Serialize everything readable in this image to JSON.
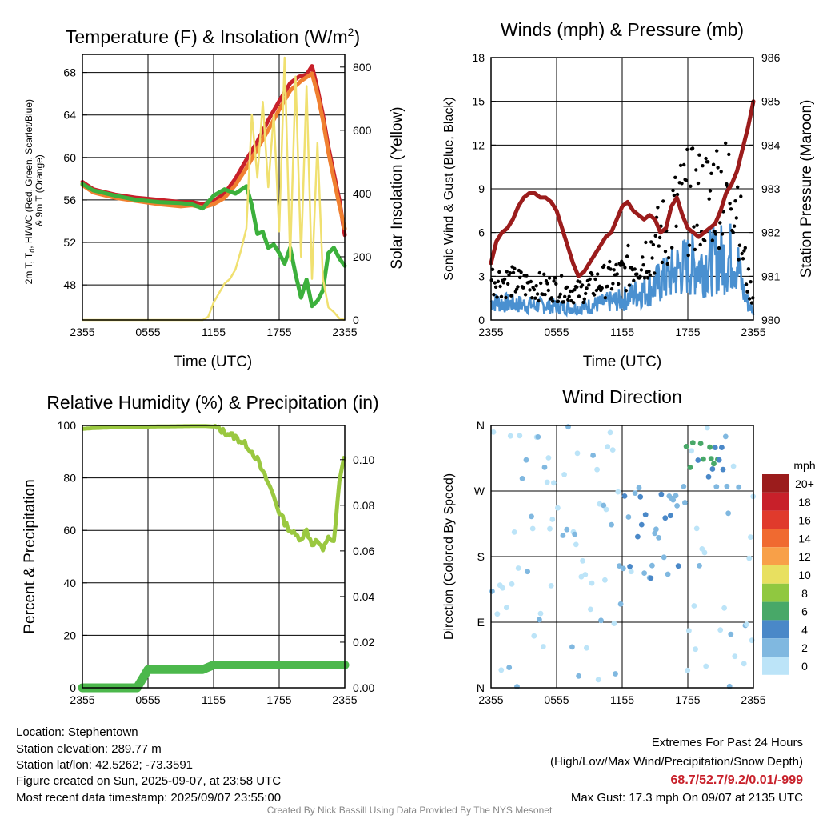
{
  "chart_data": [
    {
      "type": "line",
      "title": "Temperature (F) & Insolation (W/m²)",
      "xlabel": "Time (UTC)",
      "ylabel": "2m T, Td, HI/WC (Red, Green, Scarlet/Blue) & 9m T (Orange)",
      "y2label": "Solar Insolation (Yellow)",
      "x_ticks": [
        "2355",
        "0555",
        "1155",
        "1755",
        "2355"
      ],
      "y_ticks": [
        48,
        52,
        56,
        60,
        64,
        68
      ],
      "y2_ticks": [
        0,
        200,
        400,
        600,
        800
      ],
      "ylim": [
        44.7,
        69.7
      ],
      "y2lim": [
        0,
        840
      ],
      "grid": true,
      "series": [
        {
          "color": "#c8202a",
          "axis": "left",
          "points": [
            [
              0,
              57.7
            ],
            [
              1,
              57.0
            ],
            [
              3,
              56.5
            ],
            [
              5,
              56.2
            ],
            [
              7,
              56.0
            ],
            [
              9,
              55.8
            ],
            [
              10,
              55.8
            ],
            [
              11,
              55.6
            ],
            [
              12,
              55.9
            ],
            [
              13,
              56.6
            ],
            [
              14,
              58.0
            ],
            [
              15,
              59.8
            ],
            [
              16,
              61.5
            ],
            [
              17,
              63.5
            ],
            [
              18,
              65.3
            ],
            [
              19,
              67.0
            ],
            [
              19.8,
              67.6
            ],
            [
              20.5,
              67.8
            ],
            [
              21,
              68.6
            ],
            [
              21.5,
              66.5
            ],
            [
              22,
              64.0
            ],
            [
              22.5,
              61.0
            ],
            [
              23,
              58.5
            ],
            [
              23.5,
              56.0
            ],
            [
              24,
              52.7
            ]
          ]
        },
        {
          "color": "#f08030",
          "axis": "left",
          "points": [
            [
              0,
              57.4
            ],
            [
              1,
              56.7
            ],
            [
              3,
              56.2
            ],
            [
              5,
              55.9
            ],
            [
              7,
              55.6
            ],
            [
              9,
              55.4
            ],
            [
              10,
              55.5
            ],
            [
              11,
              55.3
            ],
            [
              12,
              55.6
            ],
            [
              13,
              56.2
            ],
            [
              14,
              57.4
            ],
            [
              15,
              59.0
            ],
            [
              16,
              60.8
            ],
            [
              17,
              62.6
            ],
            [
              18,
              64.5
            ],
            [
              19,
              66.3
            ],
            [
              20,
              67.2
            ],
            [
              21,
              67.9
            ],
            [
              21.5,
              66.0
            ],
            [
              22,
              63.5
            ],
            [
              22.5,
              60.5
            ],
            [
              23,
              58.0
            ],
            [
              23.5,
              55.5
            ],
            [
              24,
              53.3
            ]
          ]
        },
        {
          "color": "#3cb03c",
          "axis": "left",
          "points": [
            [
              0,
              57.5
            ],
            [
              1,
              56.9
            ],
            [
              3,
              56.4
            ],
            [
              5,
              56.0
            ],
            [
              7,
              55.8
            ],
            [
              9,
              55.7
            ],
            [
              10,
              55.6
            ],
            [
              11,
              55.2
            ],
            [
              12,
              56.4
            ],
            [
              13,
              57.0
            ],
            [
              14,
              56.6
            ],
            [
              15,
              57.3
            ],
            [
              15.5,
              55.5
            ],
            [
              16,
              52.8
            ],
            [
              16.5,
              53.0
            ],
            [
              17,
              51.5
            ],
            [
              17.5,
              51.8
            ],
            [
              18,
              51.0
            ],
            [
              18.5,
              50.0
            ],
            [
              19,
              51.5
            ],
            [
              19.5,
              49.0
            ],
            [
              20,
              46.8
            ],
            [
              20.5,
              48.5
            ],
            [
              21,
              46.0
            ],
            [
              21.5,
              46.5
            ],
            [
              22,
              47.5
            ],
            [
              22.5,
              51.0
            ],
            [
              23,
              51.5
            ],
            [
              23.5,
              50.5
            ],
            [
              24,
              49.8
            ]
          ]
        },
        {
          "color": "#f0e070",
          "axis": "right",
          "points": [
            [
              0,
              0
            ],
            [
              11,
              0
            ],
            [
              11.5,
              10
            ],
            [
              12,
              55
            ],
            [
              12.5,
              85
            ],
            [
              13,
              115
            ],
            [
              13.5,
              130
            ],
            [
              14,
              160
            ],
            [
              14.5,
              220
            ],
            [
              15,
              290
            ],
            [
              15.5,
              650
            ],
            [
              16,
              450
            ],
            [
              16.5,
              690
            ],
            [
              17,
              420
            ],
            [
              17.5,
              650
            ],
            [
              18,
              280
            ],
            [
              18.5,
              830
            ],
            [
              19,
              190
            ],
            [
              19.5,
              770
            ],
            [
              20,
              200
            ],
            [
              20.5,
              740
            ],
            [
              21,
              130
            ],
            [
              21.5,
              560
            ],
            [
              22,
              130
            ],
            [
              22.5,
              40
            ],
            [
              23,
              25
            ],
            [
              23.5,
              5
            ],
            [
              24,
              0
            ]
          ]
        }
      ]
    },
    {
      "type": "line",
      "title": "Winds (mph) & Pressure (mb)",
      "xlabel": "Time (UTC)",
      "ylabel": "Sonic Wind & Gust (Blue, Black)",
      "y2label": "Station Pressure (Maroon)",
      "x_ticks": [
        "2355",
        "0555",
        "1155",
        "1755",
        "2355"
      ],
      "y_ticks": [
        0,
        3,
        6,
        9,
        12,
        15,
        18
      ],
      "y2_ticks": [
        980,
        981,
        982,
        983,
        984,
        985,
        986
      ],
      "ylim": [
        0,
        18
      ],
      "y2lim": [
        980,
        986
      ],
      "grid": true,
      "wind_color": "#4a90d0",
      "gust_color": "#000000",
      "pressure_color": "#9b1c1c",
      "pressure": [
        [
          0,
          981.3
        ],
        [
          0.5,
          981.8
        ],
        [
          1,
          982.0
        ],
        [
          1.5,
          982.1
        ],
        [
          2,
          982.3
        ],
        [
          2.5,
          982.6
        ],
        [
          3,
          982.8
        ],
        [
          3.5,
          982.9
        ],
        [
          4,
          982.9
        ],
        [
          4.5,
          982.8
        ],
        [
          5,
          982.8
        ],
        [
          5.5,
          982.7
        ],
        [
          6,
          982.5
        ],
        [
          6.5,
          982.1
        ],
        [
          7,
          981.7
        ],
        [
          7.5,
          981.3
        ],
        [
          8,
          981.0
        ],
        [
          8.5,
          981.1
        ],
        [
          9,
          981.3
        ],
        [
          9.5,
          981.5
        ],
        [
          10,
          981.7
        ],
        [
          10.5,
          981.9
        ],
        [
          11,
          982.0
        ],
        [
          11.5,
          982.3
        ],
        [
          12,
          982.6
        ],
        [
          12.5,
          982.7
        ],
        [
          13,
          982.5
        ],
        [
          13.5,
          982.4
        ],
        [
          14,
          982.3
        ],
        [
          14.5,
          982.4
        ],
        [
          15,
          982.3
        ],
        [
          15.5,
          982.0
        ],
        [
          16,
          982.1
        ],
        [
          16.5,
          982.6
        ],
        [
          17,
          982.8
        ],
        [
          17.5,
          982.4
        ],
        [
          18,
          982.1
        ],
        [
          18.5,
          982.0
        ],
        [
          19,
          981.9
        ],
        [
          19.5,
          982.0
        ],
        [
          20,
          982.1
        ],
        [
          20.5,
          982.2
        ],
        [
          21,
          982.5
        ],
        [
          21.5,
          982.9
        ],
        [
          22,
          983.1
        ],
        [
          22.5,
          983.4
        ],
        [
          23,
          983.9
        ],
        [
          23.5,
          984.4
        ],
        [
          24,
          985.0
        ]
      ],
      "wind_max": [
        [
          0,
          2.0
        ],
        [
          2,
          1.8
        ],
        [
          4,
          1.6
        ],
        [
          6,
          1.5
        ],
        [
          8,
          1.3
        ],
        [
          10,
          1.8
        ],
        [
          12,
          2.2
        ],
        [
          13,
          2.8
        ],
        [
          14,
          3.2
        ],
        [
          15,
          3.8
        ],
        [
          16,
          4.5
        ],
        [
          17,
          5.5
        ],
        [
          18,
          6.0
        ],
        [
          19,
          6.0
        ],
        [
          20,
          6.3
        ],
        [
          21,
          6.8
        ],
        [
          21.5,
          6.5
        ],
        [
          22,
          7.0
        ],
        [
          22.5,
          6.5
        ],
        [
          23,
          3.5
        ],
        [
          23.5,
          1.8
        ],
        [
          24,
          1.0
        ]
      ]
    },
    {
      "type": "line",
      "title": "Relative Humidity (%) & Precipitation (in)",
      "xlabel": "",
      "ylabel": "Percent & Precipitation",
      "x_ticks": [
        "2355",
        "0555",
        "1155",
        "1755",
        "2355"
      ],
      "y_ticks": [
        0,
        20,
        40,
        60,
        80,
        100
      ],
      "y2_ticks": [
        "0.00",
        "0.02",
        "0.04",
        "0.06",
        "0.08",
        "0.10"
      ],
      "ylim": [
        0,
        100
      ],
      "y2lim": [
        0,
        0.115
      ],
      "grid": true,
      "series": [
        {
          "color": "#9ac840",
          "axis": "left",
          "points": [
            [
              0,
              98.7
            ],
            [
              1,
              99.0
            ],
            [
              3,
              99.3
            ],
            [
              5,
              99.5
            ],
            [
              7,
              99.6
            ],
            [
              9,
              99.7
            ],
            [
              11,
              99.8
            ],
            [
              12,
              99.6
            ],
            [
              13,
              97.5
            ],
            [
              14,
              95.5
            ],
            [
              15,
              92.5
            ],
            [
              15.5,
              90.0
            ],
            [
              16,
              87.0
            ],
            [
              16.5,
              82.0
            ],
            [
              17,
              78.0
            ],
            [
              17.5,
              73.0
            ],
            [
              18,
              67.0
            ],
            [
              18.5,
              63.0
            ],
            [
              19,
              60.0
            ],
            [
              19.5,
              58.0
            ],
            [
              20,
              57.0
            ],
            [
              20.5,
              60.0
            ],
            [
              21,
              55.0
            ],
            [
              21.5,
              56.0
            ],
            [
              22,
              52.0
            ],
            [
              22.5,
              58.0
            ],
            [
              23,
              55.0
            ],
            [
              23.5,
              78.0
            ],
            [
              24,
              89.0
            ]
          ]
        },
        {
          "color": "#4cb84c",
          "axis": "right",
          "points": [
            [
              0,
              0.0
            ],
            [
              5,
              0.0
            ],
            [
              5.5,
              0.004
            ],
            [
              6,
              0.008
            ],
            [
              11,
              0.008
            ],
            [
              11.5,
              0.009
            ],
            [
              12,
              0.01
            ],
            [
              24,
              0.01
            ]
          ]
        }
      ]
    },
    {
      "type": "scatter",
      "title": "Wind Direction",
      "ylabel": "Direction (Colored By Speed)",
      "x_ticks": [
        "2355",
        "0555",
        "1155",
        "1755",
        "2355"
      ],
      "y_ticks": [
        "N",
        "E",
        "S",
        "W",
        "N"
      ],
      "grid": true,
      "colorbar": {
        "title": "mph",
        "labels": [
          "20+",
          "18",
          "16",
          "14",
          "12",
          "10",
          "8",
          "6",
          "4",
          "2",
          "0"
        ],
        "colors": [
          "#9b1c1c",
          "#c8202a",
          "#e03a2c",
          "#f06a30",
          "#f8a048",
          "#e8e060",
          "#90c840",
          "#48a868",
          "#4a88c8",
          "#80b8e0",
          "#bce4f8"
        ]
      }
    }
  ],
  "info": {
    "location": "Location: Stephentown",
    "elevation": "Station elevation: 289.77 m",
    "latlon": "Station lat/lon: 42.5262; -73.3591",
    "created": "Figure created on Sun, 2025-09-07, at 23:58 UTC",
    "recent": "Most recent data timestamp: 2025/09/07 23:55:00"
  },
  "extremes": {
    "title": "Extremes For Past 24 Hours",
    "subtitle": "(High/Low/Max Wind/Precipitation/Snow Depth)",
    "values": "68.7/52.7/9.2/0.01/-999",
    "gust": "Max Gust: 17.3 mph On 09/07 at 2135 UTC"
  },
  "credit": "Created By Nick Bassill Using Data Provided By The NYS Mesonet"
}
